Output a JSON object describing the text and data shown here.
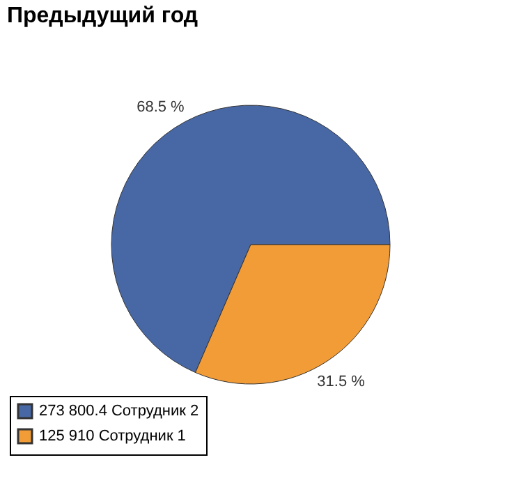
{
  "chart_data": {
    "type": "pie",
    "title": "Предыдущий год",
    "categories": [
      "273 800.4 Сотрудник 2",
      "125 910 Сотрудник 1"
    ],
    "values": [
      68.5,
      31.5
    ],
    "colors": [
      "#4767a5",
      "#f29c38"
    ],
    "value_labels": [
      "68.5 %",
      "31.5 %"
    ],
    "legend": "bottom left"
  }
}
